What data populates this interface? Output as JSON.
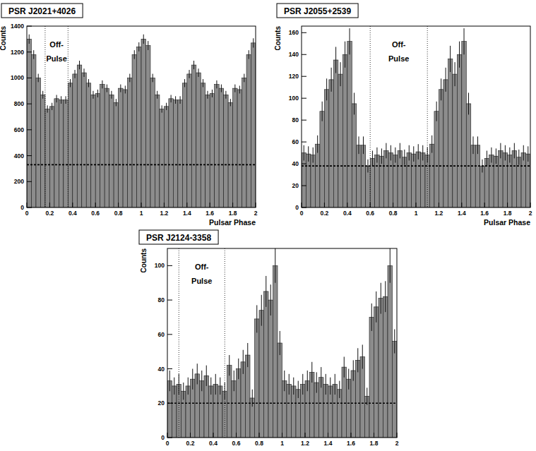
{
  "chart_data": [
    {
      "type": "histogram",
      "title": "PSR J2021+4026",
      "ylabel": "Counts",
      "xlabel": "Pulsar Phase",
      "color": "#8c8c8c",
      "bins": [
        0,
        0.04,
        0.08,
        0.12,
        0.16,
        0.2,
        0.24,
        0.28,
        0.32,
        0.36,
        0.4,
        0.44,
        0.48,
        0.52,
        0.56,
        0.6,
        0.64,
        0.68,
        0.72,
        0.76,
        0.8,
        0.84,
        0.88,
        0.92,
        0.96,
        1,
        1.04,
        1.08,
        1.12,
        1.16,
        1.2,
        1.24,
        1.28,
        1.32,
        1.36,
        1.4,
        1.44,
        1.48,
        1.52,
        1.56,
        1.6,
        1.64,
        1.68,
        1.72,
        1.76,
        1.8,
        1.84,
        1.88,
        1.92,
        1.96,
        2
      ],
      "values": [
        1300,
        1180,
        1000,
        870,
        760,
        780,
        840,
        830,
        830,
        960,
        1030,
        1100,
        1040,
        960,
        870,
        880,
        950,
        920,
        870,
        810,
        920,
        910,
        1000,
        1180,
        1240,
        1300,
        1250,
        1000,
        870,
        760,
        780,
        840,
        830,
        830,
        960,
        1030,
        1100,
        1040,
        960,
        870,
        880,
        950,
        920,
        870,
        810,
        920,
        910,
        1000,
        1180,
        1270
      ],
      "errors": [
        36,
        34,
        32,
        30,
        28,
        28,
        29,
        29,
        29,
        31,
        32,
        33,
        32,
        31,
        30,
        30,
        31,
        30,
        30,
        28,
        30,
        30,
        32,
        34,
        35,
        36,
        35,
        32,
        30,
        28,
        28,
        29,
        29,
        29,
        31,
        32,
        33,
        32,
        31,
        30,
        30,
        31,
        30,
        30,
        28,
        30,
        30,
        32,
        34,
        36
      ],
      "xlim": [
        0,
        2
      ],
      "ylim": [
        0,
        1400
      ],
      "xticks": [
        0,
        0.2,
        0.4,
        0.6,
        0.8,
        1,
        1.2,
        1.4,
        1.6,
        1.8,
        2
      ],
      "yticks": [
        0,
        200,
        400,
        600,
        800,
        1000,
        1200,
        1400
      ],
      "off_pulse": [
        0.16,
        0.36
      ],
      "off_pulse_label": [
        "Off-",
        "Pulse"
      ],
      "background": 330
    },
    {
      "type": "histogram",
      "title": "PSR J2055+2539",
      "ylabel": "Counts",
      "xlabel": "Pulsar Phase",
      "color": "#8c8c8c",
      "bins": [
        0,
        0.04,
        0.08,
        0.12,
        0.16,
        0.2,
        0.24,
        0.28,
        0.32,
        0.36,
        0.4,
        0.44,
        0.48,
        0.52,
        0.56,
        0.6,
        0.64,
        0.68,
        0.72,
        0.76,
        0.8,
        0.84,
        0.88,
        0.92,
        0.96,
        1,
        1.04,
        1.08,
        1.12,
        1.16,
        1.2,
        1.24,
        1.28,
        1.32,
        1.36,
        1.4,
        1.44,
        1.48,
        1.52,
        1.56,
        1.6,
        1.64,
        1.68,
        1.72,
        1.76,
        1.8,
        1.84,
        1.88,
        1.92,
        1.96,
        2
      ],
      "values": [
        50,
        49,
        48,
        58,
        88,
        108,
        117,
        135,
        122,
        140,
        152,
        95,
        57,
        57,
        38,
        45,
        48,
        47,
        52,
        50,
        48,
        52,
        46,
        50,
        49,
        51,
        50,
        48,
        58,
        88,
        108,
        117,
        136,
        122,
        140,
        152,
        95,
        57,
        57,
        38,
        45,
        48,
        47,
        52,
        50,
        48,
        52,
        46,
        50,
        49
      ],
      "errors": [
        7,
        7,
        7,
        8,
        9,
        10,
        11,
        12,
        11,
        12,
        12,
        10,
        8,
        8,
        6,
        7,
        7,
        7,
        7,
        7,
        7,
        7,
        7,
        7,
        7,
        7,
        7,
        7,
        8,
        9,
        10,
        11,
        12,
        11,
        12,
        12,
        10,
        8,
        8,
        6,
        7,
        7,
        7,
        7,
        7,
        7,
        7,
        7,
        7,
        7
      ],
      "xlim": [
        0,
        2
      ],
      "ylim": [
        0,
        166
      ],
      "xticks": [
        0,
        0.2,
        0.4,
        0.6,
        0.8,
        1,
        1.2,
        1.4,
        1.6,
        1.8,
        2
      ],
      "yticks": [
        0,
        20,
        40,
        60,
        80,
        100,
        120,
        140,
        160
      ],
      "off_pulse": [
        0.6,
        1.1
      ],
      "off_pulse_label": [
        "Off-",
        "Pulse"
      ],
      "background": 38
    },
    {
      "type": "histogram",
      "title": "PSR J2124-3358",
      "ylabel": "Counts",
      "color": "#8c8c8c",
      "bins": [
        0,
        0.04,
        0.08,
        0.12,
        0.16,
        0.2,
        0.24,
        0.28,
        0.32,
        0.36,
        0.4,
        0.44,
        0.48,
        0.52,
        0.56,
        0.6,
        0.64,
        0.68,
        0.72,
        0.76,
        0.8,
        0.84,
        0.88,
        0.92,
        0.96,
        1,
        1.04,
        1.08,
        1.12,
        1.16,
        1.2,
        1.24,
        1.28,
        1.32,
        1.36,
        1.4,
        1.44,
        1.48,
        1.52,
        1.56,
        1.6,
        1.64,
        1.68,
        1.72,
        1.76,
        1.8,
        1.84,
        1.88,
        1.92,
        1.96,
        2
      ],
      "values": [
        33,
        30,
        31,
        27,
        30,
        34,
        37,
        33,
        36,
        30,
        31,
        30,
        27,
        42,
        33,
        40,
        44,
        48,
        23,
        69,
        74,
        85,
        80,
        100,
        55,
        33,
        31,
        30,
        28,
        31,
        33,
        38,
        32,
        35,
        31,
        30,
        31,
        28,
        41,
        34,
        39,
        45,
        47,
        24,
        70,
        76,
        81,
        82,
        100,
        56
      ],
      "errors": [
        6,
        5,
        6,
        5,
        5,
        6,
        6,
        6,
        6,
        5,
        6,
        5,
        5,
        6,
        6,
        6,
        7,
        7,
        5,
        8,
        9,
        9,
        9,
        10,
        7,
        6,
        6,
        5,
        5,
        6,
        6,
        6,
        6,
        6,
        6,
        5,
        6,
        5,
        6,
        6,
        6,
        7,
        7,
        5,
        8,
        9,
        9,
        9,
        10,
        7
      ],
      "xlim": [
        0,
        2
      ],
      "ylim": [
        0,
        110
      ],
      "xticks": [
        0,
        0.2,
        0.4,
        0.6,
        0.8,
        1,
        1.2,
        1.4,
        1.6,
        1.8,
        2
      ],
      "yticks": [
        0,
        20,
        40,
        60,
        80,
        100
      ],
      "off_pulse": [
        0.1,
        0.5
      ],
      "off_pulse_label": [
        "Off-",
        "Pulse"
      ],
      "background": 20
    }
  ]
}
